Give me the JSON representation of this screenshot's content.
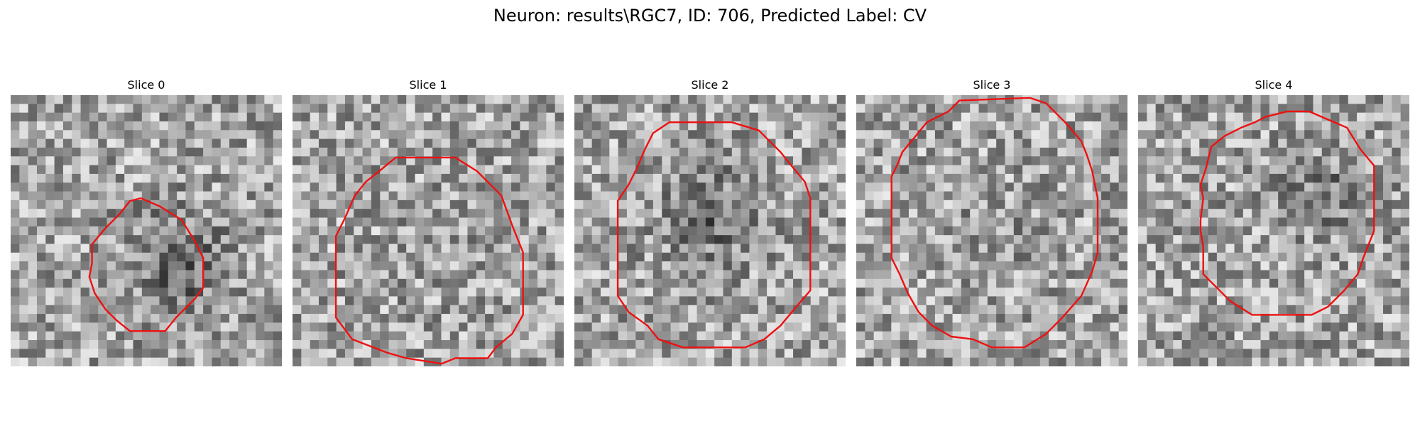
{
  "figure": {
    "title": "Neuron: results\\RGC7, ID: 706, Predicted Label: CV"
  },
  "contour_color": "#ee1111",
  "panels": [
    {
      "title": "Slice 0",
      "seed": 11,
      "dark_center": [
        0.62,
        0.62
      ],
      "dark_strength": 70,
      "contour": [
        [
          0.48,
          0.38
        ],
        [
          0.55,
          0.41
        ],
        [
          0.63,
          0.46
        ],
        [
          0.68,
          0.54
        ],
        [
          0.71,
          0.6
        ],
        [
          0.71,
          0.71
        ],
        [
          0.68,
          0.75
        ],
        [
          0.65,
          0.78
        ],
        [
          0.61,
          0.82
        ],
        [
          0.57,
          0.87
        ],
        [
          0.44,
          0.87
        ],
        [
          0.39,
          0.83
        ],
        [
          0.35,
          0.79
        ],
        [
          0.31,
          0.73
        ],
        [
          0.29,
          0.67
        ],
        [
          0.3,
          0.62
        ],
        [
          0.3,
          0.55
        ],
        [
          0.35,
          0.49
        ],
        [
          0.4,
          0.44
        ],
        [
          0.44,
          0.39
        ]
      ]
    },
    {
      "title": "Slice 1",
      "seed": 23,
      "dark_center": [
        0.55,
        0.55
      ],
      "dark_strength": 10,
      "contour": [
        [
          0.38,
          0.23
        ],
        [
          0.6,
          0.23
        ],
        [
          0.68,
          0.28
        ],
        [
          0.77,
          0.37
        ],
        [
          0.81,
          0.48
        ],
        [
          0.85,
          0.58
        ],
        [
          0.85,
          0.81
        ],
        [
          0.81,
          0.88
        ],
        [
          0.75,
          0.93
        ],
        [
          0.72,
          0.97
        ],
        [
          0.6,
          0.97
        ],
        [
          0.55,
          0.99
        ],
        [
          0.42,
          0.97
        ],
        [
          0.35,
          0.95
        ],
        [
          0.22,
          0.9
        ],
        [
          0.19,
          0.86
        ],
        [
          0.16,
          0.82
        ],
        [
          0.16,
          0.52
        ],
        [
          0.19,
          0.46
        ],
        [
          0.23,
          0.37
        ],
        [
          0.27,
          0.32
        ],
        [
          0.32,
          0.28
        ]
      ]
    },
    {
      "title": "Slice 2",
      "seed": 37,
      "dark_center": [
        0.52,
        0.45
      ],
      "dark_strength": 55,
      "contour": [
        [
          0.35,
          0.1
        ],
        [
          0.58,
          0.1
        ],
        [
          0.68,
          0.13
        ],
        [
          0.76,
          0.21
        ],
        [
          0.8,
          0.26
        ],
        [
          0.85,
          0.32
        ],
        [
          0.87,
          0.38
        ],
        [
          0.87,
          0.72
        ],
        [
          0.81,
          0.79
        ],
        [
          0.76,
          0.85
        ],
        [
          0.7,
          0.9
        ],
        [
          0.63,
          0.93
        ],
        [
          0.4,
          0.93
        ],
        [
          0.31,
          0.9
        ],
        [
          0.27,
          0.85
        ],
        [
          0.2,
          0.8
        ],
        [
          0.16,
          0.74
        ],
        [
          0.16,
          0.39
        ],
        [
          0.2,
          0.33
        ],
        [
          0.23,
          0.27
        ],
        [
          0.26,
          0.2
        ],
        [
          0.29,
          0.14
        ]
      ]
    },
    {
      "title": "Slice 3",
      "seed": 51,
      "dark_center": [
        0.5,
        0.55
      ],
      "dark_strength": 15,
      "contour": [
        [
          0.38,
          0.02
        ],
        [
          0.34,
          0.06
        ],
        [
          0.26,
          0.1
        ],
        [
          0.22,
          0.15
        ],
        [
          0.17,
          0.21
        ],
        [
          0.15,
          0.26
        ],
        [
          0.13,
          0.3
        ],
        [
          0.13,
          0.6
        ],
        [
          0.16,
          0.66
        ],
        [
          0.19,
          0.73
        ],
        [
          0.23,
          0.8
        ],
        [
          0.28,
          0.85
        ],
        [
          0.35,
          0.89
        ],
        [
          0.43,
          0.9
        ],
        [
          0.5,
          0.93
        ],
        [
          0.62,
          0.93
        ],
        [
          0.7,
          0.88
        ],
        [
          0.76,
          0.82
        ],
        [
          0.83,
          0.74
        ],
        [
          0.87,
          0.65
        ],
        [
          0.89,
          0.58
        ],
        [
          0.89,
          0.38
        ],
        [
          0.87,
          0.28
        ],
        [
          0.85,
          0.22
        ],
        [
          0.83,
          0.17
        ],
        [
          0.77,
          0.1
        ],
        [
          0.7,
          0.03
        ],
        [
          0.64,
          0.01
        ]
      ]
    },
    {
      "title": "Slice 4",
      "seed": 67,
      "dark_center": [
        0.7,
        0.35
      ],
      "dark_strength": 35,
      "contour": [
        [
          0.43,
          0.1
        ],
        [
          0.47,
          0.08
        ],
        [
          0.55,
          0.06
        ],
        [
          0.63,
          0.06
        ],
        [
          0.7,
          0.09
        ],
        [
          0.77,
          0.12
        ],
        [
          0.82,
          0.2
        ],
        [
          0.87,
          0.26
        ],
        [
          0.87,
          0.5
        ],
        [
          0.83,
          0.6
        ],
        [
          0.81,
          0.66
        ],
        [
          0.76,
          0.72
        ],
        [
          0.7,
          0.78
        ],
        [
          0.64,
          0.81
        ],
        [
          0.42,
          0.81
        ],
        [
          0.34,
          0.76
        ],
        [
          0.29,
          0.71
        ],
        [
          0.24,
          0.66
        ],
        [
          0.24,
          0.56
        ],
        [
          0.23,
          0.5
        ],
        [
          0.23,
          0.46
        ],
        [
          0.24,
          0.38
        ],
        [
          0.23,
          0.33
        ],
        [
          0.25,
          0.27
        ],
        [
          0.27,
          0.19
        ],
        [
          0.32,
          0.15
        ],
        [
          0.38,
          0.12
        ]
      ]
    }
  ]
}
